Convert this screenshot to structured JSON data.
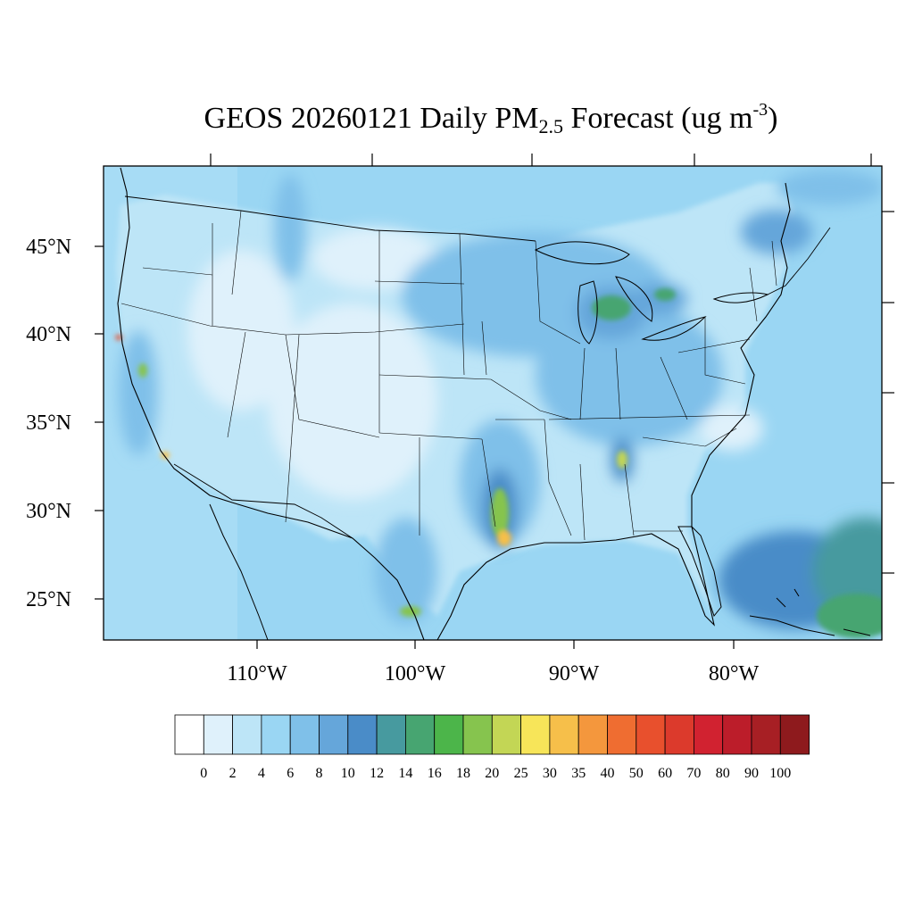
{
  "title": {
    "main": "GEOS 20260121 Daily PM",
    "sub": "2.5",
    "rest": " Forecast (ug m",
    "sup": "-3",
    "close": ")"
  },
  "lat_labels": [
    "45°N",
    "40°N",
    "35°N",
    "30°N",
    "25°N"
  ],
  "lon_labels": [
    "110°W",
    "100°W",
    "90°W",
    "80°W"
  ],
  "colorbar": {
    "labels": [
      "0",
      "2",
      "4",
      "6",
      "8",
      "10",
      "12",
      "14",
      "16",
      "18",
      "20",
      "25",
      "30",
      "35",
      "40",
      "50",
      "60",
      "70",
      "80",
      "90",
      "100"
    ],
    "colors": [
      "#ffffff",
      "#dff1fb",
      "#bde5f7",
      "#9ad6f3",
      "#7fc0e9",
      "#65a6da",
      "#4a8cc8",
      "#479a9f",
      "#47a571",
      "#4cb54a",
      "#86c44e",
      "#c3d655",
      "#f7e559",
      "#f6bf4a",
      "#f4973d",
      "#ef6d31",
      "#e8502d",
      "#dc3a2c",
      "#d12230",
      "#bc1d2a",
      "#a71f24",
      "#8e1a1d"
    ]
  },
  "colors": {
    "ocean_east": "#9ad6f3",
    "ocean_west": "#bde5f7",
    "land_base": "#dff1fb",
    "border": "#000000"
  }
}
